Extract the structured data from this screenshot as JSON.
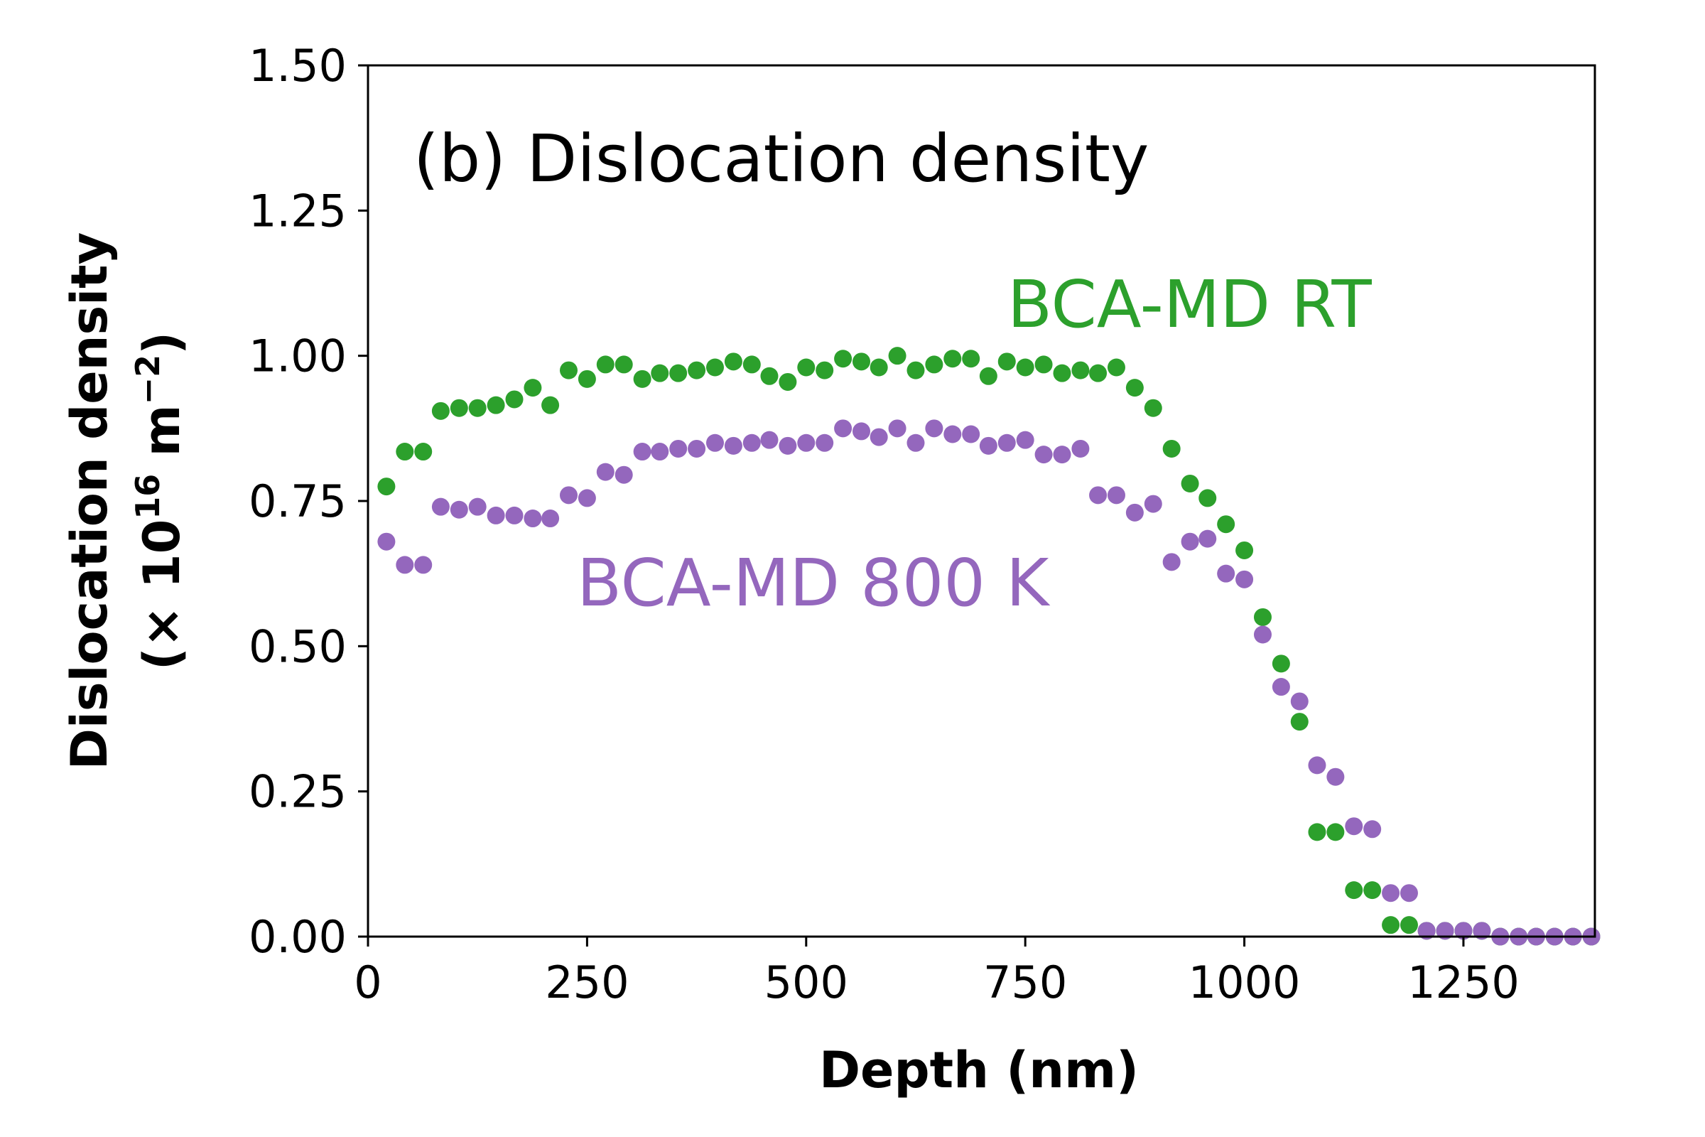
{
  "chart_data": {
    "type": "scatter",
    "title": "(b) Dislocation density",
    "xlabel": "Depth (nm)",
    "ylabel": {
      "line1": "Dislocation density",
      "line2_prefix": "(× 10",
      "line2_exponent": "16",
      "line2_unit": " m",
      "line2_unit_exponent": "−2",
      "line2_suffix": ")"
    },
    "xlim": [
      0,
      1400
    ],
    "ylim": [
      0,
      1.5
    ],
    "xticks": [
      0,
      250,
      500,
      750,
      1000,
      1250
    ],
    "xtick_labels": [
      "0",
      "250",
      "500",
      "750",
      "1000",
      "1250"
    ],
    "yticks": [
      0,
      0.25,
      0.5,
      0.75,
      1.0,
      1.25,
      1.5
    ],
    "ytick_labels": [
      "0.00",
      "0.25",
      "0.50",
      "0.75",
      "1.00",
      "1.25",
      "1.50"
    ],
    "series": [
      {
        "name": "BCA-MD RT",
        "color": "#2ca02c",
        "x": [
          21,
          42,
          63,
          83,
          104,
          125,
          146,
          167,
          188,
          208,
          229,
          250,
          271,
          292,
          313,
          333,
          354,
          375,
          396,
          417,
          438,
          458,
          479,
          500,
          521,
          542,
          563,
          583,
          604,
          625,
          646,
          667,
          688,
          708,
          729,
          750,
          771,
          792,
          813,
          833,
          854,
          875,
          896,
          917,
          938,
          958,
          979,
          1000,
          1021,
          1042,
          1063,
          1083,
          1104,
          1125,
          1146,
          1167,
          1188,
          1208,
          1229,
          1250,
          1271,
          1292,
          1313,
          1333,
          1354,
          1375,
          1396
        ],
        "y": [
          0.775,
          0.835,
          0.835,
          0.905,
          0.91,
          0.91,
          0.915,
          0.925,
          0.945,
          0.915,
          0.975,
          0.96,
          0.985,
          0.985,
          0.96,
          0.97,
          0.97,
          0.975,
          0.98,
          0.99,
          0.985,
          0.965,
          0.955,
          0.98,
          0.975,
          0.995,
          0.99,
          0.98,
          1.0,
          0.975,
          0.985,
          0.995,
          0.995,
          0.965,
          0.99,
          0.98,
          0.985,
          0.97,
          0.975,
          0.97,
          0.98,
          0.945,
          0.91,
          0.84,
          0.78,
          0.755,
          0.71,
          0.665,
          0.55,
          0.47,
          0.37,
          0.18,
          0.18,
          0.08,
          0.08,
          0.02,
          0.02,
          0.01,
          0.01,
          0.01,
          0.01,
          0.0,
          0.0,
          0.0,
          0.0,
          0.0,
          0.0
        ]
      },
      {
        "name": "BCA-MD 800 K",
        "color": "#9467bd",
        "x": [
          21,
          42,
          63,
          83,
          104,
          125,
          146,
          167,
          188,
          208,
          229,
          250,
          271,
          292,
          313,
          333,
          354,
          375,
          396,
          417,
          438,
          458,
          479,
          500,
          521,
          542,
          563,
          583,
          604,
          625,
          646,
          667,
          688,
          708,
          729,
          750,
          771,
          792,
          813,
          833,
          854,
          875,
          896,
          917,
          938,
          958,
          979,
          1000,
          1021,
          1042,
          1063,
          1083,
          1104,
          1125,
          1146,
          1167,
          1188,
          1208,
          1229,
          1250,
          1271,
          1292,
          1313,
          1333,
          1354,
          1375,
          1396
        ],
        "y": [
          0.68,
          0.64,
          0.64,
          0.74,
          0.735,
          0.74,
          0.725,
          0.725,
          0.72,
          0.72,
          0.76,
          0.755,
          0.8,
          0.795,
          0.835,
          0.835,
          0.84,
          0.84,
          0.85,
          0.845,
          0.85,
          0.855,
          0.845,
          0.85,
          0.85,
          0.875,
          0.87,
          0.86,
          0.875,
          0.85,
          0.875,
          0.865,
          0.865,
          0.845,
          0.85,
          0.855,
          0.83,
          0.83,
          0.84,
          0.76,
          0.76,
          0.73,
          0.745,
          0.645,
          0.68,
          0.685,
          0.625,
          0.615,
          0.52,
          0.43,
          0.405,
          0.295,
          0.275,
          0.19,
          0.185,
          0.075,
          0.075,
          0.01,
          0.01,
          0.01,
          0.01,
          0.0,
          0.0,
          0.0,
          0.0,
          0.0,
          0.0
        ]
      }
    ],
    "annotations": {
      "rt_label": "BCA-MD RT",
      "k800_label": "BCA-MD 800 K"
    }
  }
}
